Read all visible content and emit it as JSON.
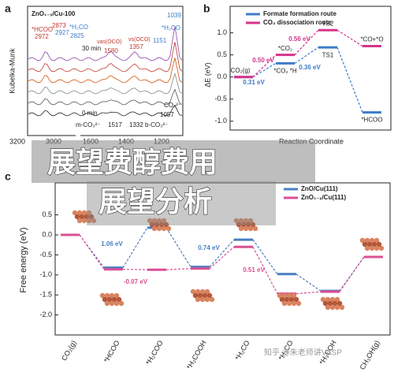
{
  "panel_a": {
    "label": "a",
    "title": "ZnO₁₋ₓ/Cu-100",
    "y_label": "Kubelka-Munk",
    "xticks": [
      "3200",
      "3000",
      "1600",
      "1400",
      "1200"
    ],
    "peaks": [
      "*HCOO",
      "2972",
      "2873",
      "2927",
      "2825",
      "*H₂CO",
      "νas(OCO)",
      "νs(OCO)",
      "1580",
      "1357",
      "1151",
      "1039",
      "*H₂CO",
      "30 min",
      "0 min",
      "m-CO₃²⁻",
      "1517",
      "1332 b-CO₃²⁻",
      "1057",
      "CO₃²⁻"
    ]
  },
  "chart_data": [
    {
      "type": "energy",
      "label": "b",
      "y_label": "ΔE (eV)",
      "x_label": "Reaction Coordinate",
      "ylim": [
        -1.2,
        1.6
      ],
      "yticks": [
        {
          "value": 1,
          "label": "1.0"
        },
        0.5,
        {
          "value": 0,
          "label": "0.0"
        },
        -0.5,
        {
          "value": -1,
          "label": "-1.0"
        }
      ],
      "series": [
        {
          "name": "Formate formation route",
          "color": "#3d7cc9",
          "values": [
            0,
            0.31,
            0.67,
            -0.8
          ],
          "point_labels": [
            "CO₂(g)",
            "*CO₂ *H",
            "TS1",
            "*HCOO"
          ]
        },
        {
          "name": "CO₂ dissociation route",
          "color": "#d6338a",
          "values": [
            0,
            0.5,
            1.06,
            0.7
          ],
          "point_labels": [
            null,
            "*CO₂",
            "TS2",
            "*CO+*O"
          ]
        }
      ],
      "annotations": [
        {
          "text": "0.50 eV",
          "color": "#d6338a"
        },
        {
          "text": "0.56 eV",
          "color": "#d6338a"
        },
        {
          "text": "0.31 eV",
          "color": "#3d7cc9"
        },
        {
          "text": "0.36 eV",
          "color": "#3d7cc9"
        }
      ]
    },
    {
      "type": "energy",
      "label": "c",
      "y_label": "Free energy (eV)",
      "ylim": [
        -2.5,
        1.3
      ],
      "yticks": [
        0.5,
        {
          "value": 0,
          "label": "0.0"
        },
        -0.5,
        {
          "value": -1,
          "label": "-1.0"
        },
        -1.5,
        {
          "value": -2,
          "label": "-2.0"
        }
      ],
      "categories": [
        "CO₂(g)",
        "*HCOO",
        "*H₂COO",
        "*H₂COOH",
        "*H₂CO",
        "*H₃CO",
        "*H₃COH",
        "CH₃OH(g)"
      ],
      "series": [
        {
          "name": "ZnO/Cu(111)",
          "color": "#4a7fc1",
          "values": [
            0,
            -0.82,
            0.18,
            -0.8,
            -0.12,
            -0.98,
            -1.4,
            -0.55
          ]
        },
        {
          "name": "ZnO₁₋ₓ/Cu(111)",
          "color": "#d94f95",
          "values": [
            0,
            -0.86,
            -0.87,
            -0.84,
            -0.3,
            -1.47,
            -1.42,
            -0.55
          ]
        }
      ],
      "annotations": [
        {
          "text": "1.06 eV",
          "color": "#4a7fc1"
        },
        {
          "text": "-0.07 eV",
          "color": "#d94f95"
        },
        {
          "text": "0.74 eV",
          "color": "#4a7fc1"
        },
        {
          "text": "0.51 eV",
          "color": "#d94f95"
        }
      ]
    }
  ],
  "overlay": {
    "line1": "展望费醇费用",
    "line2": "展望分析"
  },
  "watermark": "知乎 @朱老师讲VASP"
}
